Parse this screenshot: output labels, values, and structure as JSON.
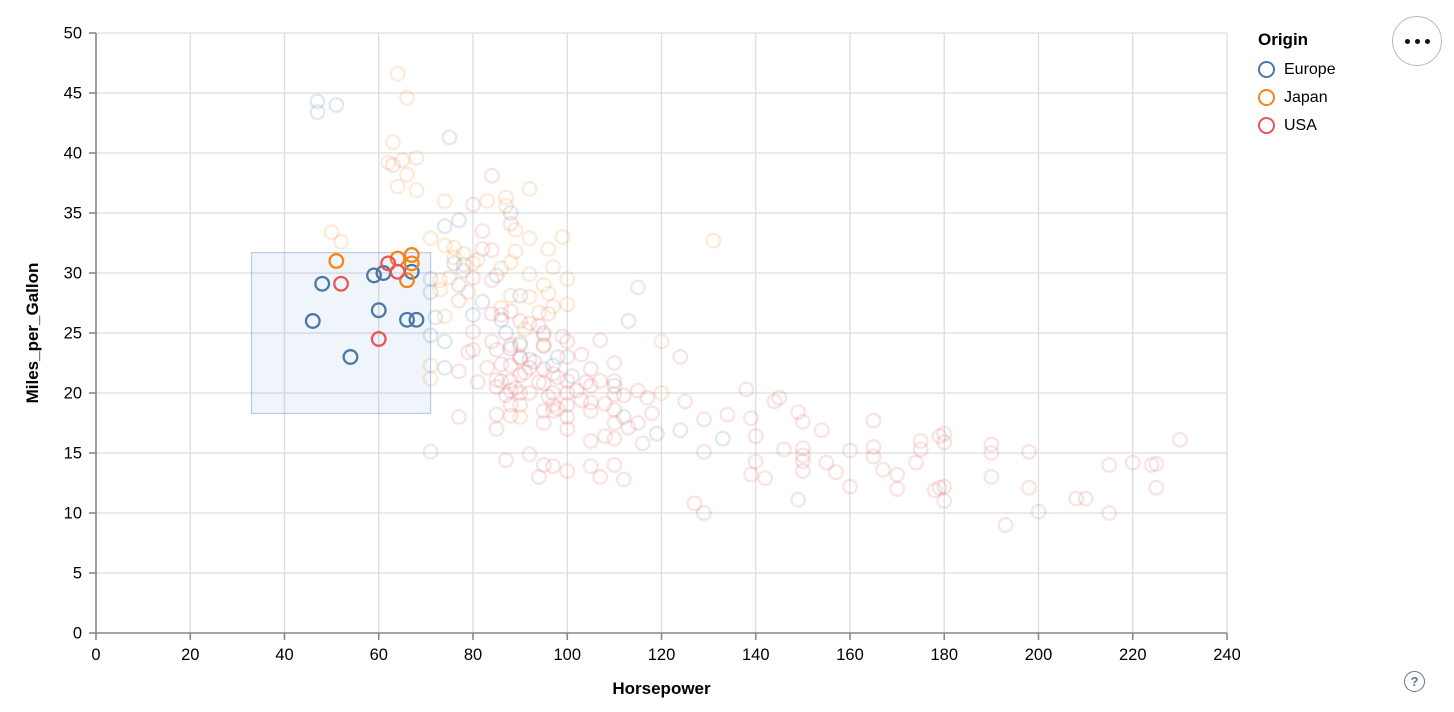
{
  "chart_data": {
    "type": "scatter",
    "xlabel": "Horsepower",
    "ylabel": "Miles_per_Gallon",
    "xlim": [
      0,
      240
    ],
    "ylim": [
      0,
      50
    ],
    "xticks": [
      0,
      20,
      40,
      60,
      80,
      100,
      120,
      140,
      160,
      180,
      200,
      220,
      240
    ],
    "yticks": [
      0,
      5,
      10,
      15,
      20,
      25,
      30,
      35,
      40,
      45,
      50
    ],
    "grid": true,
    "legend": {
      "title": "Origin",
      "position": "top-right",
      "entries": [
        {
          "label": "Europe",
          "color": "#4c78a8"
        },
        {
          "label": "Japan",
          "color": "#f58518"
        },
        {
          "label": "USA",
          "color": "#e45756"
        }
      ]
    },
    "brush": {
      "x": [
        33,
        71
      ],
      "y": [
        18.3,
        31.7
      ],
      "fill": "#6e93d6",
      "fill_opacity": 0.1,
      "stroke": "#7d9bd2",
      "stroke_opacity": 0.5
    },
    "point_style": {
      "radius": 6.8,
      "stroke_width": 2.3,
      "faded_opacity": 0.17,
      "selected_opacity": 1
    },
    "series": [
      {
        "name": "Europe",
        "color": "#4c78a8",
        "selected": [
          [
            48,
            29.1
          ],
          [
            46,
            26
          ],
          [
            54,
            23
          ],
          [
            60,
            26.9
          ],
          [
            66,
            26.1
          ],
          [
            68,
            26.1
          ],
          [
            61,
            30
          ],
          [
            59,
            29.8
          ],
          [
            67,
            30.1
          ]
        ],
        "unselected": [
          [
            47,
            44.3
          ],
          [
            47,
            43.4
          ],
          [
            51,
            44
          ],
          [
            75,
            41.3
          ],
          [
            88,
            35
          ],
          [
            77,
            34.4
          ],
          [
            74,
            33.9
          ],
          [
            76,
            30.8
          ],
          [
            78,
            30.7
          ],
          [
            77,
            29
          ],
          [
            71,
            29.5
          ],
          [
            71,
            28.4
          ],
          [
            72,
            26.3
          ],
          [
            71,
            24.8
          ],
          [
            74,
            24.3
          ],
          [
            74,
            22.1
          ],
          [
            85,
            29.8
          ],
          [
            90,
            28.1
          ],
          [
            95,
            25
          ],
          [
            90,
            24
          ],
          [
            87,
            25
          ],
          [
            113,
            26
          ],
          [
            112,
            18
          ],
          [
            98,
            23
          ],
          [
            80,
            26.5
          ],
          [
            88,
            23.7
          ],
          [
            97,
            22.3
          ],
          [
            110,
            20.6
          ],
          [
            119,
            16.6
          ],
          [
            124,
            16.9
          ],
          [
            133,
            16.2
          ],
          [
            82,
            27.6
          ],
          [
            86,
            26.1
          ],
          [
            92,
            22.8
          ],
          [
            101,
            21.4
          ]
        ]
      },
      {
        "name": "Japan",
        "color": "#f58518",
        "selected": [
          [
            51,
            31
          ],
          [
            64,
            31.2
          ],
          [
            67,
            31.5
          ],
          [
            67,
            30.8
          ],
          [
            66,
            29.4
          ]
        ],
        "unselected": [
          [
            64,
            46.6
          ],
          [
            66,
            44.6
          ],
          [
            63,
            40.9
          ],
          [
            65,
            39.4
          ],
          [
            68,
            39.6
          ],
          [
            66,
            38.2
          ],
          [
            64,
            37.2
          ],
          [
            68,
            36.9
          ],
          [
            62,
            39.2
          ],
          [
            92,
            37
          ],
          [
            74,
            36
          ],
          [
            83,
            36
          ],
          [
            87,
            36.3
          ],
          [
            87,
            35.6
          ],
          [
            89,
            33.6
          ],
          [
            96,
            32
          ],
          [
            99,
            33
          ],
          [
            71,
            32.9
          ],
          [
            74,
            32.3
          ],
          [
            50,
            33.4
          ],
          [
            52,
            32.6
          ],
          [
            131,
            32.7
          ],
          [
            73,
            29.4
          ],
          [
            73,
            28.6
          ],
          [
            74,
            26.4
          ],
          [
            71,
            22.3
          ],
          [
            71,
            21.2
          ],
          [
            86,
            27.1
          ],
          [
            76,
            32.1
          ],
          [
            76,
            31.3
          ],
          [
            78,
            31.6
          ],
          [
            80,
            30.8
          ],
          [
            88,
            30.9
          ],
          [
            92,
            29.9
          ],
          [
            97,
            30.5
          ],
          [
            92,
            28
          ],
          [
            88,
            28.1
          ],
          [
            95,
            29
          ],
          [
            100,
            29.5
          ],
          [
            97,
            27.2
          ],
          [
            90,
            24.2
          ],
          [
            95,
            24.8
          ],
          [
            81,
            31.1
          ],
          [
            92,
            32.9
          ],
          [
            89,
            31.8
          ],
          [
            96,
            28.3
          ],
          [
            75,
            29.6
          ],
          [
            79,
            28.4
          ],
          [
            86,
            30.4
          ],
          [
            100,
            27.4
          ],
          [
            94,
            26.7
          ],
          [
            91,
            25.3
          ],
          [
            97,
            19
          ],
          [
            90,
            18
          ],
          [
            120,
            20
          ],
          [
            120,
            24.3
          ]
        ]
      },
      {
        "name": "USA",
        "color": "#e45756",
        "selected": [
          [
            52,
            29.1
          ],
          [
            60,
            24.5
          ],
          [
            62,
            30.8
          ],
          [
            64,
            30.1
          ]
        ],
        "unselected": [
          [
            63,
            39
          ],
          [
            84,
            38.1
          ],
          [
            80,
            35.7
          ],
          [
            82,
            33.5
          ],
          [
            88,
            34.1
          ],
          [
            82,
            32
          ],
          [
            84,
            31.9
          ],
          [
            77,
            27.7
          ],
          [
            78,
            30.2
          ],
          [
            80,
            29.6
          ],
          [
            84,
            29.4
          ],
          [
            86,
            26.5
          ],
          [
            85,
            20.5
          ],
          [
            85,
            18.2
          ],
          [
            85,
            17
          ],
          [
            85,
            21.1
          ],
          [
            88,
            20.2
          ],
          [
            88,
            21
          ],
          [
            88,
            19
          ],
          [
            88,
            18.1
          ],
          [
            88,
            22.3
          ],
          [
            88,
            24
          ],
          [
            88,
            26.8
          ],
          [
            90,
            20
          ],
          [
            90,
            21.5
          ],
          [
            90,
            23
          ],
          [
            90,
            19
          ],
          [
            90,
            26
          ],
          [
            92,
            20
          ],
          [
            92,
            22.1
          ],
          [
            92,
            25.8
          ],
          [
            92,
            14.9
          ],
          [
            95,
            22
          ],
          [
            95,
            24
          ],
          [
            95,
            23.9
          ],
          [
            95,
            18.5
          ],
          [
            95,
            20.8
          ],
          [
            95,
            17.5
          ],
          [
            95,
            14
          ],
          [
            97,
            18.5
          ],
          [
            97,
            20
          ],
          [
            97,
            21.6
          ],
          [
            97,
            13.9
          ],
          [
            100,
            18
          ],
          [
            100,
            19
          ],
          [
            100,
            20
          ],
          [
            100,
            21
          ],
          [
            100,
            17
          ],
          [
            100,
            23
          ],
          [
            100,
            13.5
          ],
          [
            102,
            20.2
          ],
          [
            103,
            19.4
          ],
          [
            104,
            20.9
          ],
          [
            105,
            16
          ],
          [
            105,
            18.5
          ],
          [
            105,
            19.2
          ],
          [
            105,
            20.6
          ],
          [
            105,
            22
          ],
          [
            105,
            13.9
          ],
          [
            107,
            21
          ],
          [
            107,
            13
          ],
          [
            108,
            19.1
          ],
          [
            108,
            16.4
          ],
          [
            110,
            16.2
          ],
          [
            110,
            17.5
          ],
          [
            110,
            18.6
          ],
          [
            110,
            19.9
          ],
          [
            110,
            21
          ],
          [
            110,
            22.5
          ],
          [
            110,
            14
          ],
          [
            112,
            19.8
          ],
          [
            112,
            12.8
          ],
          [
            113,
            17.1
          ],
          [
            115,
            17.5
          ],
          [
            115,
            20.2
          ],
          [
            115,
            28.8
          ],
          [
            116,
            15.8
          ],
          [
            117,
            19.6
          ],
          [
            118,
            18.3
          ],
          [
            86,
            22.4
          ],
          [
            86,
            21
          ],
          [
            87,
            19.8
          ],
          [
            89,
            20.4
          ],
          [
            91,
            21.7
          ],
          [
            93,
            22.6
          ],
          [
            94,
            20.9
          ],
          [
            96,
            19.7
          ],
          [
            98,
            21.3
          ],
          [
            98,
            18.7
          ],
          [
            79,
            23.4
          ],
          [
            77,
            21.8
          ],
          [
            81,
            20.9
          ],
          [
            83,
            22.1
          ],
          [
            85,
            23.6
          ],
          [
            90,
            22.9
          ],
          [
            94,
            25.6
          ],
          [
            99,
            24.7
          ],
          [
            103,
            23.2
          ],
          [
            107,
            24.4
          ],
          [
            80,
            25.1
          ],
          [
            84,
            26.6
          ],
          [
            96,
            26.6
          ],
          [
            84,
            24.3
          ],
          [
            80,
            23.6
          ],
          [
            100,
            24.3
          ],
          [
            71,
            15.1
          ],
          [
            77,
            18
          ],
          [
            87,
            14.4
          ],
          [
            94,
            13
          ],
          [
            124,
            23
          ],
          [
            125,
            19.3
          ],
          [
            129,
            17.8
          ],
          [
            129,
            15.1
          ],
          [
            134,
            18.2
          ],
          [
            138,
            20.3
          ],
          [
            139,
            17.9
          ],
          [
            140,
            16.4
          ],
          [
            140,
            14.3
          ],
          [
            139,
            13.2
          ],
          [
            142,
            12.9
          ],
          [
            144,
            19.3
          ],
          [
            145,
            19.6
          ],
          [
            146,
            15.3
          ],
          [
            149,
            18.4
          ],
          [
            150,
            17.6
          ],
          [
            150,
            15.4
          ],
          [
            150,
            14.8
          ],
          [
            150,
            14.3
          ],
          [
            150,
            13.5
          ],
          [
            149,
            11.1
          ],
          [
            154,
            16.9
          ],
          [
            155,
            14.2
          ],
          [
            157,
            13.4
          ],
          [
            160,
            12.2
          ],
          [
            160,
            15.2
          ],
          [
            165,
            17.7
          ],
          [
            165,
            15.5
          ],
          [
            165,
            14.7
          ],
          [
            167,
            13.6
          ],
          [
            170,
            13.2
          ],
          [
            170,
            12
          ],
          [
            175,
            16
          ],
          [
            175,
            15.3
          ],
          [
            174,
            14.2
          ],
          [
            178,
            11.9
          ],
          [
            180,
            16.6
          ],
          [
            180,
            15.9
          ],
          [
            180,
            12.2
          ],
          [
            127,
            10.8
          ],
          [
            129,
            10
          ],
          [
            179,
            16.4
          ],
          [
            190,
            15.7
          ],
          [
            190,
            15
          ],
          [
            198,
            15.1
          ],
          [
            190,
            13
          ],
          [
            179,
            12.1
          ],
          [
            198,
            12.1
          ],
          [
            180,
            11
          ],
          [
            208,
            11.2
          ],
          [
            210,
            11.2
          ],
          [
            200,
            10.1
          ],
          [
            215,
            10
          ],
          [
            215,
            14
          ],
          [
            220,
            14.2
          ],
          [
            225,
            14.1
          ],
          [
            224,
            14
          ],
          [
            225,
            12.1
          ],
          [
            230,
            16.1
          ],
          [
            193,
            9
          ]
        ]
      }
    ],
    "axis_style": {
      "grid_color": "#dddddd",
      "domain_color": "#888888",
      "tick_color": "#888888",
      "label_color": "#000000"
    }
  },
  "widgets": {
    "help_label": "?"
  }
}
